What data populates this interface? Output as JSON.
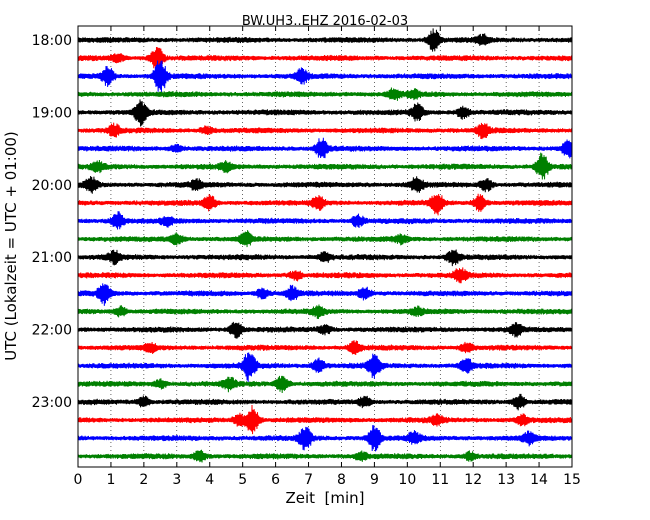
{
  "chart_data": {
    "type": "line",
    "title": "BW.UH3..EHZ 2016-02-03",
    "xlabel": "Zeit  [min]",
    "ylabel": "UTC (Lokalzeit = UTC + 01:00)",
    "xlim": [
      0,
      15
    ],
    "x_ticks": [
      "0",
      "1",
      "2",
      "3",
      "4",
      "5",
      "6",
      "7",
      "8",
      "9",
      "10",
      "11",
      "12",
      "13",
      "14",
      "15"
    ],
    "y_ticks": [
      "18:00",
      "19:00",
      "20:00",
      "21:00",
      "22:00",
      "23:00"
    ],
    "grid": "vertical dotted lines at each minute",
    "trace_colors": [
      "#000000",
      "#ff0000",
      "#0000ff",
      "#008000"
    ],
    "traces": [
      {
        "start": "18:00",
        "events": [
          [
            10.8,
            1.8
          ],
          [
            12.3,
            0.8
          ]
        ]
      },
      {
        "start": "18:15",
        "events": [
          [
            2.4,
            2.0
          ],
          [
            1.2,
            0.6
          ]
        ]
      },
      {
        "start": "18:30",
        "events": [
          [
            2.5,
            3.0
          ],
          [
            0.9,
            1.6
          ],
          [
            6.8,
            1.2
          ]
        ]
      },
      {
        "start": "18:45",
        "events": [
          [
            9.6,
            1.0
          ],
          [
            10.2,
            0.7
          ]
        ]
      },
      {
        "start": "19:00",
        "events": [
          [
            1.9,
            2.0
          ],
          [
            10.3,
            1.4
          ],
          [
            11.7,
            1.0
          ]
        ]
      },
      {
        "start": "19:15",
        "events": [
          [
            1.1,
            1.0
          ],
          [
            12.3,
            1.2
          ],
          [
            3.9,
            0.6
          ]
        ]
      },
      {
        "start": "19:30",
        "events": [
          [
            7.4,
            1.8
          ],
          [
            14.9,
            1.6
          ],
          [
            3.0,
            0.6
          ]
        ]
      },
      {
        "start": "19:45",
        "events": [
          [
            14.1,
            2.4
          ],
          [
            0.6,
            0.8
          ],
          [
            4.5,
            0.8
          ]
        ]
      },
      {
        "start": "20:00",
        "events": [
          [
            0.4,
            1.2
          ],
          [
            10.3,
            1.4
          ],
          [
            12.4,
            1.0
          ],
          [
            3.6,
            0.8
          ]
        ]
      },
      {
        "start": "20:15",
        "events": [
          [
            4.0,
            1.2
          ],
          [
            7.3,
            1.2
          ],
          [
            10.9,
            1.8
          ],
          [
            12.2,
            1.4
          ]
        ]
      },
      {
        "start": "20:30",
        "events": [
          [
            1.2,
            1.4
          ],
          [
            8.5,
            1.0
          ],
          [
            2.7,
            0.7
          ]
        ]
      },
      {
        "start": "20:45",
        "events": [
          [
            5.1,
            1.2
          ],
          [
            3.0,
            0.9
          ],
          [
            9.8,
            0.6
          ]
        ]
      },
      {
        "start": "21:00",
        "events": [
          [
            11.4,
            1.2
          ],
          [
            1.1,
            1.0
          ],
          [
            7.5,
            0.8
          ]
        ]
      },
      {
        "start": "21:15",
        "events": [
          [
            11.6,
            1.2
          ],
          [
            6.6,
            0.8
          ]
        ]
      },
      {
        "start": "21:30",
        "events": [
          [
            0.8,
            1.8
          ],
          [
            6.5,
            1.2
          ],
          [
            8.7,
            1.0
          ],
          [
            5.6,
            0.8
          ]
        ]
      },
      {
        "start": "21:45",
        "events": [
          [
            1.3,
            0.8
          ],
          [
            7.3,
            0.9
          ],
          [
            10.3,
            0.6
          ]
        ]
      },
      {
        "start": "22:00",
        "events": [
          [
            4.8,
            1.4
          ],
          [
            13.3,
            1.0
          ],
          [
            7.5,
            0.7
          ]
        ]
      },
      {
        "start": "22:15",
        "events": [
          [
            8.4,
            1.0
          ],
          [
            11.8,
            0.8
          ],
          [
            2.2,
            0.7
          ]
        ]
      },
      {
        "start": "22:30",
        "events": [
          [
            5.2,
            2.6
          ],
          [
            9.0,
            2.0
          ],
          [
            7.3,
            1.2
          ],
          [
            11.8,
            1.2
          ]
        ]
      },
      {
        "start": "22:45",
        "events": [
          [
            6.2,
            1.4
          ],
          [
            4.6,
            1.0
          ],
          [
            2.5,
            0.7
          ]
        ]
      },
      {
        "start": "23:00",
        "events": [
          [
            13.4,
            1.2
          ],
          [
            2.0,
            0.9
          ],
          [
            8.7,
            0.8
          ]
        ]
      },
      {
        "start": "23:15",
        "events": [
          [
            5.3,
            2.4
          ],
          [
            4.9,
            1.0
          ],
          [
            10.9,
            0.8
          ],
          [
            13.5,
            0.8
          ]
        ]
      },
      {
        "start": "23:30",
        "events": [
          [
            6.9,
            2.0
          ],
          [
            9.0,
            2.2
          ],
          [
            10.2,
            1.0
          ],
          [
            13.7,
            1.0
          ]
        ]
      },
      {
        "start": "23:45",
        "events": [
          [
            3.7,
            0.9
          ],
          [
            8.6,
            0.7
          ],
          [
            11.9,
            0.7
          ]
        ]
      }
    ]
  }
}
